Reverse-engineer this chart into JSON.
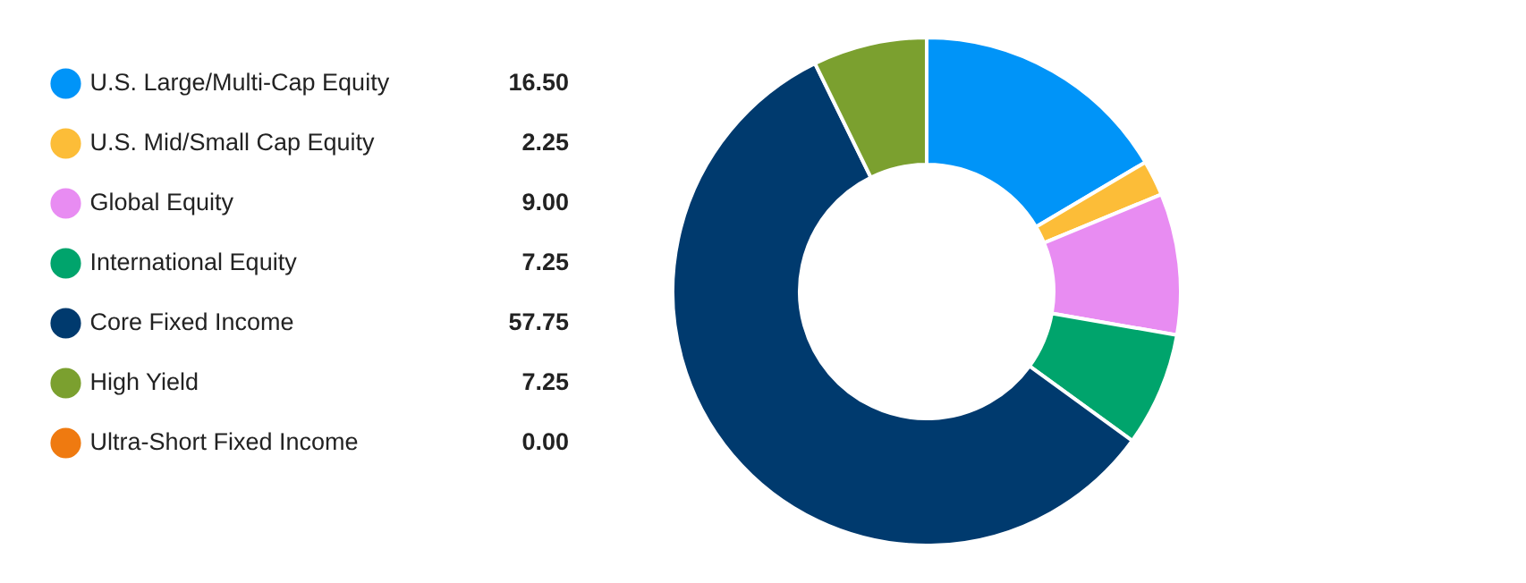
{
  "chart_data": {
    "type": "donut",
    "categories": [
      "U.S. Large/Multi-Cap Equity",
      "U.S. Mid/Small Cap Equity",
      "Global Equity",
      "International Equity",
      "Core Fixed Income",
      "High Yield",
      "Ultra-Short Fixed Income"
    ],
    "values": [
      16.5,
      2.25,
      9,
      7.25,
      57.75,
      7.25,
      0
    ],
    "value_labels": [
      "16.50",
      "2.25",
      "9.00",
      "7.25",
      "57.75",
      "7.25",
      "0.00"
    ],
    "colors": [
      "#0094f8",
      "#fcbd38",
      "#e88cf2",
      "#00a46c",
      "#003a6e",
      "#7ba02f",
      "#ef7a10"
    ],
    "legend": "left"
  }
}
